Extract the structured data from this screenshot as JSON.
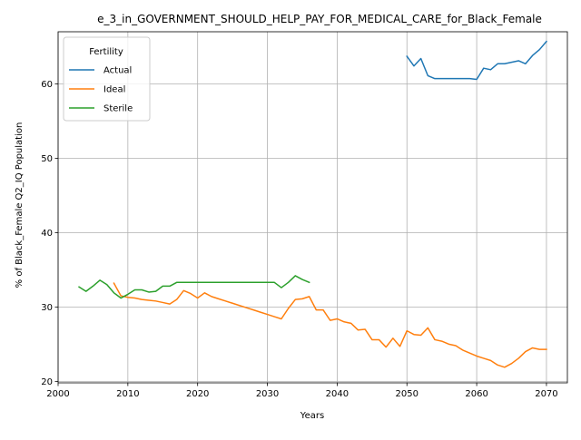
{
  "chart_data": {
    "type": "line",
    "title": "e_3_in_GOVERNMENT_SHOULD_HELP_PAY_FOR_MEDICAL_CARE_for_Black_Female",
    "xlabel": "Years",
    "ylabel": "% of Black_Female Q2_IQ Population",
    "xlim": [
      2000,
      2073
    ],
    "ylim": [
      19.8,
      67.0
    ],
    "xticks": [
      2000,
      2010,
      2020,
      2030,
      2040,
      2050,
      2060,
      2070
    ],
    "yticks": [
      20,
      30,
      40,
      50,
      60
    ],
    "grid": true,
    "legend": {
      "title": "Fertility",
      "placement": "top-left"
    },
    "series": [
      {
        "name": "Actual",
        "color": "#1f77b4",
        "x": [
          2050,
          2051,
          2052,
          2053,
          2054,
          2055,
          2056,
          2057,
          2058,
          2059,
          2060,
          2061,
          2062,
          2063,
          2064,
          2065,
          2066,
          2067,
          2068,
          2069,
          2070
        ],
        "y": [
          63.7,
          62.4,
          63.4,
          61.1,
          60.7,
          60.7,
          60.7,
          60.7,
          60.7,
          60.7,
          60.6,
          62.1,
          61.9,
          62.7,
          62.7,
          62.9,
          63.1,
          62.7,
          63.8,
          64.6,
          65.7
        ]
      },
      {
        "name": "Ideal",
        "color": "#ff7f0e",
        "x": [
          2008,
          2009,
          2010,
          2011,
          2012,
          2013,
          2014,
          2015,
          2016,
          2017,
          2018,
          2019,
          2020,
          2021,
          2022,
          2023,
          2024,
          2025,
          2026,
          2027,
          2028,
          2029,
          2030,
          2031,
          2032,
          2033,
          2034,
          2035,
          2036,
          2037,
          2038,
          2039,
          2040,
          2041,
          2042,
          2043,
          2044,
          2045,
          2046,
          2047,
          2048,
          2049,
          2050,
          2051,
          2052,
          2053,
          2054,
          2055,
          2056,
          2057,
          2058,
          2059,
          2060,
          2061,
          2062,
          2063,
          2064,
          2065,
          2066,
          2067,
          2068,
          2069,
          2070
        ],
        "y": [
          33.2,
          31.5,
          31.3,
          31.2,
          31.0,
          30.9,
          30.8,
          30.6,
          30.4,
          31.0,
          32.2,
          31.8,
          31.2,
          31.9,
          31.4,
          31.1,
          30.8,
          30.5,
          30.2,
          29.9,
          29.6,
          29.3,
          29.0,
          28.7,
          28.4,
          29.8,
          31.0,
          31.1,
          31.4,
          29.6,
          29.6,
          28.2,
          28.4,
          28.0,
          27.8,
          26.9,
          27.0,
          25.6,
          25.6,
          24.6,
          25.8,
          24.7,
          26.8,
          26.3,
          26.2,
          27.2,
          25.6,
          25.4,
          25.0,
          24.8,
          24.2,
          23.8,
          23.4,
          23.1,
          22.8,
          22.2,
          21.9,
          22.4,
          23.1,
          24.0,
          24.5,
          24.3,
          24.3
        ]
      },
      {
        "name": "Sterile",
        "color": "#2ca02c",
        "x": [
          2003,
          2004,
          2005,
          2006,
          2007,
          2008,
          2009,
          2010,
          2011,
          2012,
          2013,
          2014,
          2015,
          2016,
          2017,
          2018,
          2019,
          2020,
          2021,
          2022,
          2023,
          2024,
          2025,
          2026,
          2027,
          2028,
          2029,
          2030,
          2031,
          2032,
          2033,
          2034,
          2035,
          2036
        ],
        "y": [
          32.7,
          32.1,
          32.8,
          33.6,
          33.0,
          31.9,
          31.2,
          31.7,
          32.3,
          32.3,
          32.0,
          32.1,
          32.8,
          32.8,
          33.3,
          33.3,
          33.3,
          33.3,
          33.3,
          33.3,
          33.3,
          33.3,
          33.3,
          33.3,
          33.3,
          33.3,
          33.3,
          33.3,
          33.3,
          32.6,
          33.3,
          34.2,
          33.7,
          33.3
        ]
      }
    ]
  }
}
